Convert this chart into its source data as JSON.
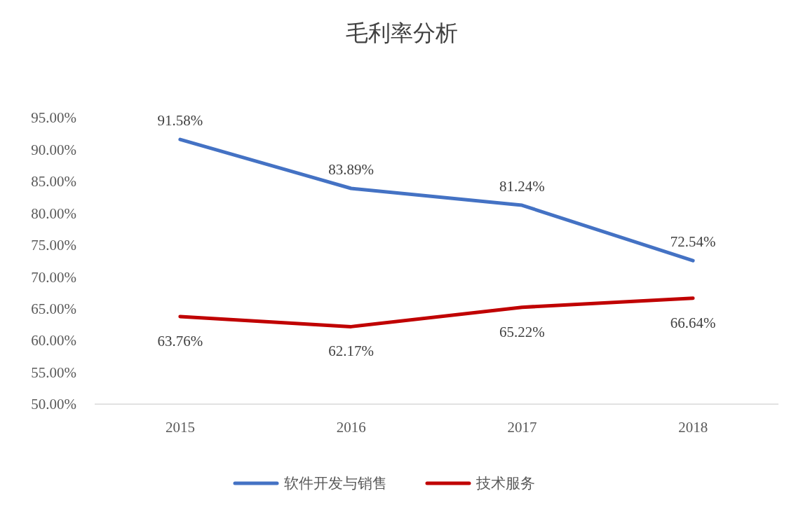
{
  "chart_data": {
    "type": "line",
    "title": "毛利率分析",
    "categories": [
      "2015",
      "2016",
      "2017",
      "2018"
    ],
    "series": [
      {
        "name": "软件开发与销售",
        "color": "#4472c4",
        "values": [
          91.58,
          83.89,
          81.24,
          72.54
        ],
        "value_labels": [
          "91.58%",
          "83.89%",
          "81.24%",
          "72.54%"
        ]
      },
      {
        "name": "技术服务",
        "color": "#c00000",
        "values": [
          63.76,
          62.17,
          65.22,
          66.64
        ],
        "value_labels": [
          "63.76%",
          "62.17%",
          "65.22%",
          "66.64%"
        ]
      }
    ],
    "ylim": [
      50,
      95
    ],
    "yticks": [
      {
        "value": 50,
        "label": "50.00%"
      },
      {
        "value": 55,
        "label": "55.00%"
      },
      {
        "value": 60,
        "label": "60.00%"
      },
      {
        "value": 65,
        "label": "65.00%"
      },
      {
        "value": 70,
        "label": "70.00%"
      },
      {
        "value": 75,
        "label": "75.00%"
      },
      {
        "value": 80,
        "label": "80.00%"
      },
      {
        "value": 85,
        "label": "85.00%"
      },
      {
        "value": 90,
        "label": "90.00%"
      },
      {
        "value": 95,
        "label": "95.00%"
      }
    ],
    "grid": false,
    "legend": "bottom",
    "marker": "none",
    "line_style": "solid"
  }
}
